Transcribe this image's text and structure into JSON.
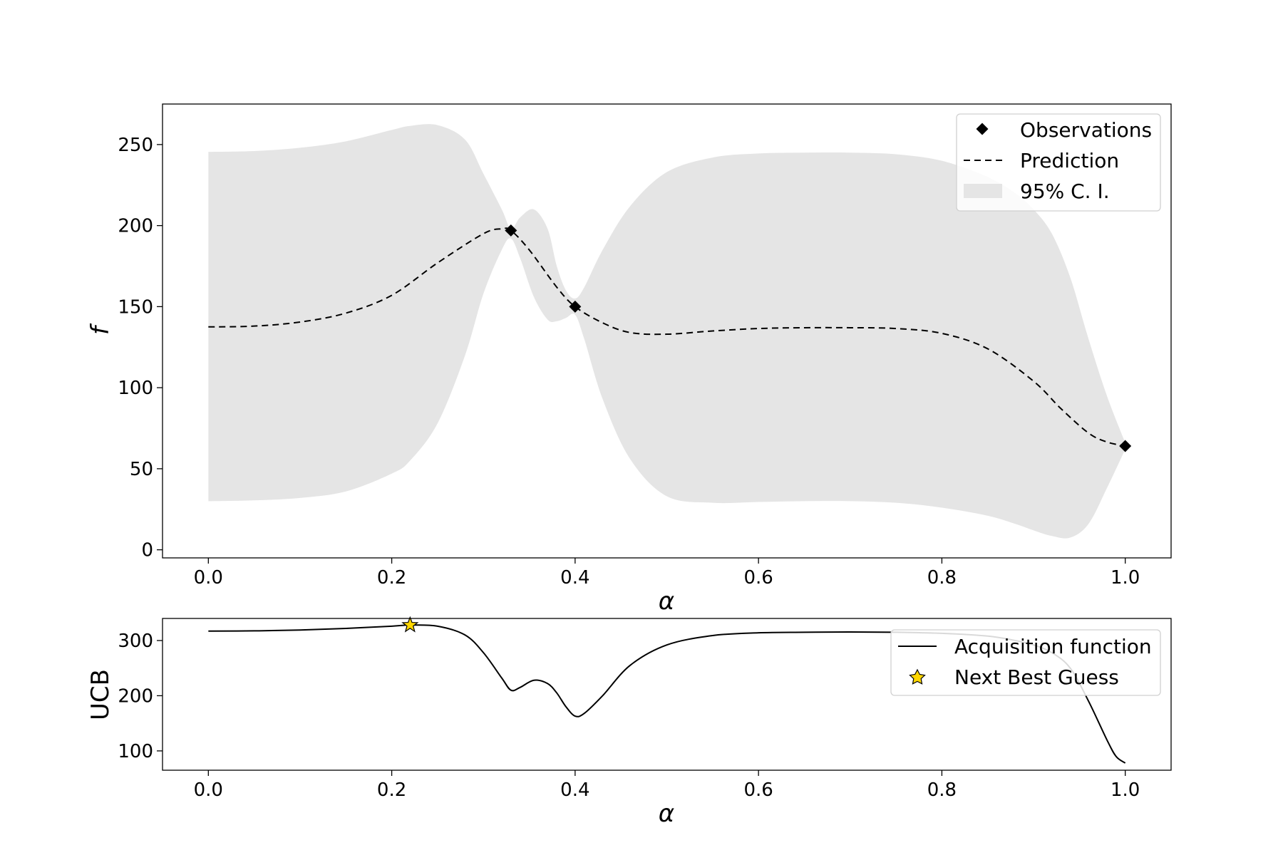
{
  "chart_data": [
    {
      "type": "line",
      "xlabel": "α",
      "ylabel": "f",
      "xlim": [
        -0.05,
        1.05
      ],
      "ylim": [
        -5,
        275
      ],
      "xticks": [
        "0.0",
        "0.2",
        "0.4",
        "0.6",
        "0.8",
        "1.0"
      ],
      "yticks": [
        "0",
        "50",
        "100",
        "150",
        "200",
        "250"
      ],
      "legend": {
        "position": "upper-right",
        "entries": [
          "Observations",
          "Prediction",
          "95% C. I."
        ]
      },
      "observations": {
        "name": "Observations",
        "x": [
          0.33,
          0.4,
          1.0
        ],
        "y": [
          197,
          150,
          64
        ]
      },
      "prediction": {
        "name": "Prediction",
        "x": [
          0.0,
          0.05,
          0.1,
          0.15,
          0.2,
          0.25,
          0.3,
          0.32,
          0.33,
          0.35,
          0.38,
          0.4,
          0.43,
          0.46,
          0.5,
          0.55,
          0.6,
          0.65,
          0.7,
          0.75,
          0.8,
          0.85,
          0.9,
          0.93,
          0.96,
          0.98,
          1.0
        ],
        "y": [
          137.5,
          138.0,
          140.5,
          146.0,
          157.0,
          177.0,
          195.0,
          198.0,
          197.0,
          185.0,
          162.0,
          150.0,
          140.0,
          134.0,
          133.0,
          135.0,
          136.5,
          137.0,
          137.0,
          136.5,
          133.5,
          124.0,
          104.0,
          87.0,
          72.0,
          66.5,
          64.0
        ]
      },
      "ci": {
        "name": "95% C. I.",
        "x": [
          0.0,
          0.05,
          0.1,
          0.15,
          0.2,
          0.22,
          0.25,
          0.28,
          0.3,
          0.32,
          0.33,
          0.34,
          0.355,
          0.37,
          0.38,
          0.39,
          0.4,
          0.41,
          0.43,
          0.46,
          0.5,
          0.55,
          0.6,
          0.65,
          0.7,
          0.75,
          0.8,
          0.85,
          0.88,
          0.9,
          0.92,
          0.94,
          0.96,
          0.98,
          1.0
        ],
        "upper": [
          245.5,
          246.0,
          248.0,
          252.0,
          259.0,
          261.5,
          262.0,
          253.0,
          232.0,
          210.0,
          198.0,
          205.0,
          210.0,
          198.0,
          175.0,
          160.0,
          155.0,
          162.0,
          185.0,
          212.0,
          233.0,
          242.0,
          244.5,
          245.0,
          245.0,
          244.0,
          240.0,
          230.0,
          220.0,
          210.0,
          195.0,
          168.0,
          130.0,
          95.0,
          66.0
        ],
        "lower": [
          30.0,
          30.5,
          32.0,
          36.0,
          47.0,
          55.0,
          78.0,
          120.0,
          158.0,
          185.0,
          192.0,
          180.0,
          156.0,
          142.0,
          141.0,
          143.0,
          145.0,
          130.0,
          93.0,
          56.0,
          33.0,
          29.0,
          29.5,
          30.0,
          30.0,
          29.0,
          26.0,
          21.0,
          16.0,
          12.0,
          8.5,
          7.5,
          16.0,
          38.0,
          62.0
        ]
      }
    },
    {
      "type": "line",
      "xlabel": "α",
      "ylabel": "UCB",
      "xlim": [
        -0.05,
        1.05
      ],
      "ylim": [
        65,
        340
      ],
      "xticks": [
        "0.0",
        "0.2",
        "0.4",
        "0.6",
        "0.8",
        "1.0"
      ],
      "yticks": [
        "100",
        "200",
        "300"
      ],
      "legend": {
        "position": "upper-right",
        "entries": [
          "Acquisition function",
          "Next Best Guess"
        ]
      },
      "acquisition": {
        "name": "Acquisition function",
        "x": [
          0.0,
          0.05,
          0.1,
          0.15,
          0.2,
          0.22,
          0.25,
          0.28,
          0.3,
          0.32,
          0.33,
          0.34,
          0.355,
          0.37,
          0.38,
          0.39,
          0.4,
          0.41,
          0.43,
          0.46,
          0.5,
          0.55,
          0.6,
          0.65,
          0.7,
          0.75,
          0.8,
          0.85,
          0.88,
          0.9,
          0.92,
          0.94,
          0.96,
          0.98,
          0.99,
          1.0
        ],
        "y": [
          317,
          317.5,
          319,
          322,
          326,
          328,
          326,
          310,
          278,
          232,
          210,
          215,
          228,
          222,
          205,
          180,
          163,
          168,
          200,
          255,
          292,
          309,
          314,
          315,
          315.5,
          315,
          313,
          308,
          300,
          292,
          278,
          250,
          190,
          120,
          90,
          78
        ]
      },
      "next_best_guess": {
        "name": "Next Best Guess",
        "x": 0.22,
        "y": 328
      }
    }
  ],
  "colors": {
    "ci_fill": "#e5e5e5",
    "line": "#000000",
    "star_fill": "#ffd700",
    "legend_border": "#d0d0d0"
  }
}
